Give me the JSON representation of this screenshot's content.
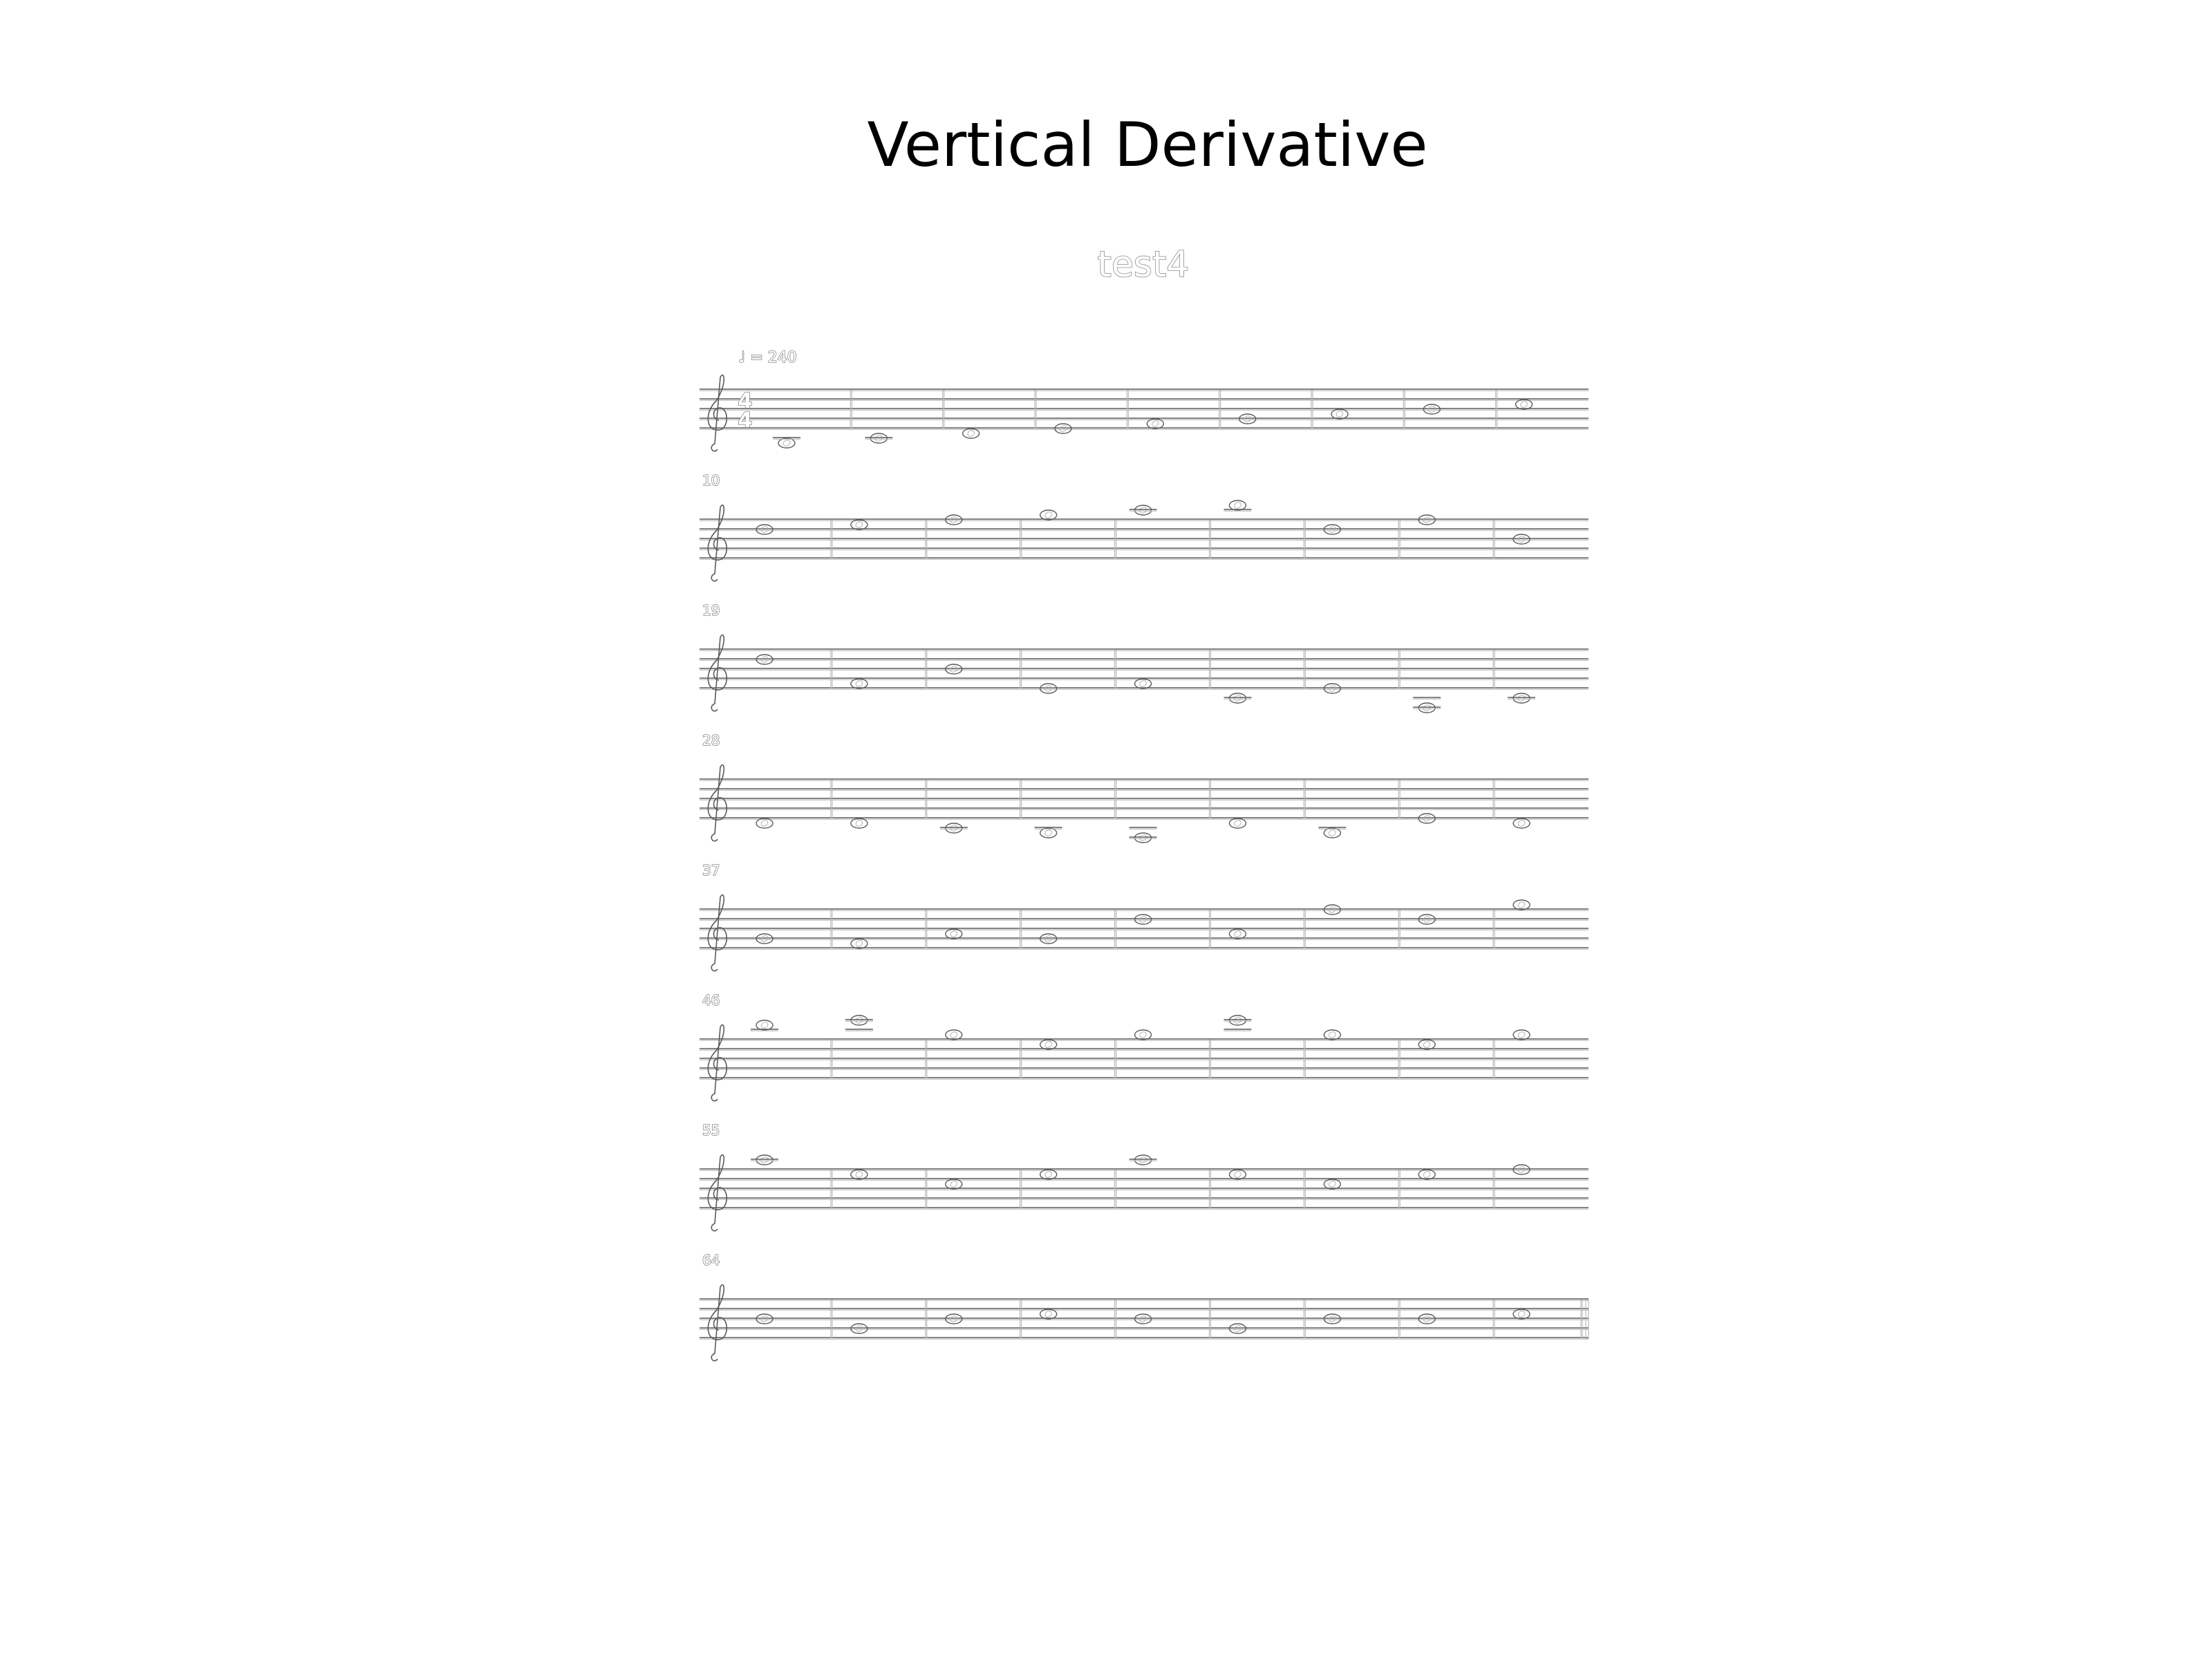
{
  "figure": {
    "title": "Vertical Derivative"
  },
  "score": {
    "title": "test4",
    "tempo_mark": "♩ = 240",
    "time_signature": {
      "numerator": "4",
      "denominator": "4"
    },
    "clef": "treble",
    "measures_per_system": 9,
    "systems": [
      {
        "first_measure": "",
        "notes": [
          -3,
          -2,
          -1,
          0,
          1,
          2,
          3,
          4,
          5
        ]
      },
      {
        "first_measure": "10",
        "notes": [
          6,
          7,
          8,
          9,
          10,
          11,
          6,
          8,
          4
        ]
      },
      {
        "first_measure": "19",
        "notes": [
          6,
          1,
          4,
          0,
          1,
          -2,
          0,
          -4,
          -2
        ]
      },
      {
        "first_measure": "28",
        "notes": [
          -1,
          -1,
          -2,
          -3,
          -4,
          -1,
          -3,
          0,
          -1
        ]
      },
      {
        "first_measure": "37",
        "notes": [
          2,
          1,
          3,
          2,
          6,
          3,
          8,
          6,
          9
        ]
      },
      {
        "first_measure": "46",
        "notes": [
          11,
          12,
          9,
          7,
          9,
          12,
          9,
          7,
          9
        ]
      },
      {
        "first_measure": "55",
        "notes": [
          10,
          7,
          5,
          7,
          10,
          7,
          5,
          7,
          8
        ]
      },
      {
        "first_measure": "64",
        "notes": [
          4,
          2,
          4,
          5,
          4,
          2,
          4,
          4,
          5
        ]
      }
    ],
    "final_barline": true
  },
  "colors": {
    "background": "#ffffff",
    "edge_dark": "#5a5a5a",
    "edge_light": "#b4b4b4",
    "title_text": "#000000"
  }
}
